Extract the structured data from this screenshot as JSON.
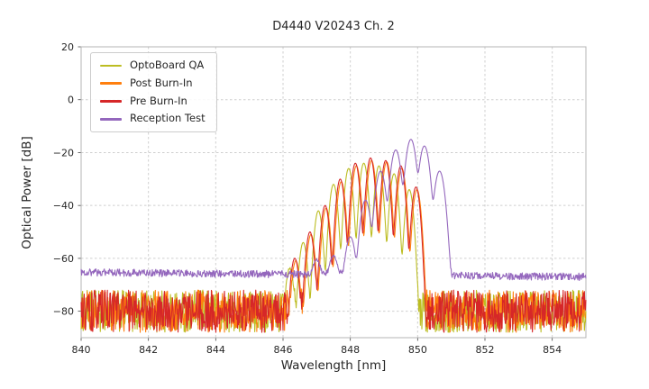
{
  "chart_data": {
    "type": "line",
    "title": "D4440 V20243 Ch. 2",
    "xlabel": "Wavelength [nm]",
    "ylabel": "Optical Power [dB]",
    "xlim": [
      840,
      855
    ],
    "ylim": [
      -90,
      20
    ],
    "xticks": [
      840,
      842,
      844,
      846,
      848,
      850,
      852,
      854
    ],
    "yticks": [
      20,
      0,
      -20,
      -40,
      -60,
      -80
    ],
    "grid": true,
    "legend_position": "upper-left",
    "series": [
      {
        "name": "OptoBoard QA",
        "color": "#bcbd22",
        "noise_floor_db": -80,
        "noise_spread_db": 8,
        "mode_width_nm": 0.085,
        "peaks": [
          {
            "x": 846.2,
            "y": -64
          },
          {
            "x": 846.6,
            "y": -54
          },
          {
            "x": 847.05,
            "y": -42
          },
          {
            "x": 847.5,
            "y": -32
          },
          {
            "x": 847.95,
            "y": -26
          },
          {
            "x": 848.4,
            "y": -24
          },
          {
            "x": 848.85,
            "y": -25
          },
          {
            "x": 849.3,
            "y": -28
          },
          {
            "x": 849.75,
            "y": -34
          }
        ]
      },
      {
        "name": "Post Burn-In",
        "color": "#ff7f0e",
        "noise_floor_db": -80,
        "noise_spread_db": 8,
        "mode_width_nm": 0.085,
        "peaks": [
          {
            "x": 846.38,
            "y": -61
          },
          {
            "x": 846.83,
            "y": -51
          },
          {
            "x": 847.28,
            "y": -41
          },
          {
            "x": 847.73,
            "y": -31
          },
          {
            "x": 848.18,
            "y": -25
          },
          {
            "x": 848.63,
            "y": -23
          },
          {
            "x": 849.08,
            "y": -23.5
          },
          {
            "x": 849.53,
            "y": -26
          },
          {
            "x": 849.98,
            "y": -34
          }
        ]
      },
      {
        "name": "Pre Burn-In",
        "color": "#d62728",
        "noise_floor_db": -80,
        "noise_spread_db": 8,
        "mode_width_nm": 0.085,
        "peaks": [
          {
            "x": 846.35,
            "y": -60
          },
          {
            "x": 846.8,
            "y": -50
          },
          {
            "x": 847.25,
            "y": -40
          },
          {
            "x": 847.7,
            "y": -30
          },
          {
            "x": 848.15,
            "y": -24
          },
          {
            "x": 848.6,
            "y": -22
          },
          {
            "x": 849.05,
            "y": -23
          },
          {
            "x": 849.5,
            "y": -25
          },
          {
            "x": 849.95,
            "y": -33
          }
        ]
      },
      {
        "name": "Reception Test",
        "color": "#9467bd",
        "noise_floor_db": -65.3,
        "noise_floor_right_db": -67,
        "noise_spread_db": 1.4,
        "mode_width_nm": 0.11,
        "peaks": [
          {
            "x": 847.0,
            "y": -62
          },
          {
            "x": 847.5,
            "y": -60
          },
          {
            "x": 848.0,
            "y": -52
          },
          {
            "x": 848.45,
            "y": -38
          },
          {
            "x": 848.9,
            "y": -27
          },
          {
            "x": 849.35,
            "y": -19
          },
          {
            "x": 849.8,
            "y": -15
          },
          {
            "x": 850.2,
            "y": -17.5
          },
          {
            "x": 850.65,
            "y": -27
          }
        ]
      }
    ]
  },
  "layout_colors": {
    "grid": "#cfcfcf",
    "frame": "#b4b4b4",
    "text": "#262626"
  }
}
